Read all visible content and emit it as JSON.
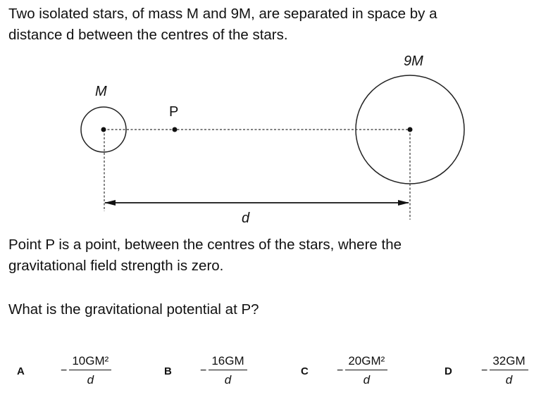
{
  "question": {
    "intro_line1": "Two isolated stars, of mass M and 9M, are separated in space by a",
    "intro_line2": "distance d between the centres of the stars.",
    "point_line1": "Point P is a point, between the centres of the stars, where the",
    "point_line2": "gravitational field strength is zero.",
    "prompt": "What is the gravitational potential at P?"
  },
  "diagram": {
    "small_star_label": "M",
    "large_star_label": "9M",
    "point_label": "P",
    "distance_label": "d"
  },
  "options": [
    {
      "letter": "A",
      "sign": "−",
      "numerator": "10GM²",
      "denominator": "d"
    },
    {
      "letter": "B",
      "sign": "−",
      "numerator": "16GM",
      "denominator": "d"
    },
    {
      "letter": "C",
      "sign": "−",
      "numerator": "20GM²",
      "denominator": "d"
    },
    {
      "letter": "D",
      "sign": "−",
      "numerator": "32GM",
      "denominator": "d"
    }
  ]
}
